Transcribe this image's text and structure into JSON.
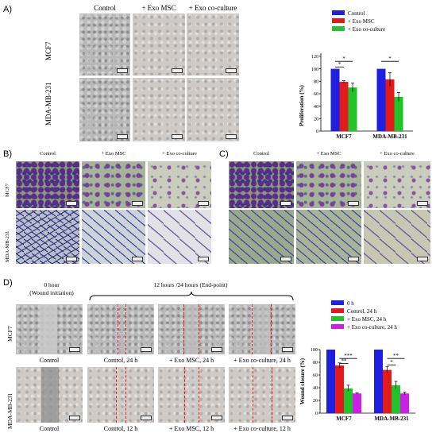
{
  "panels": {
    "a": {
      "label": "A)",
      "headers": [
        "Control",
        "+ Exo MSC",
        "+ Exo co-culture"
      ],
      "rows": [
        "MCF7",
        "MDA-MB-231"
      ]
    },
    "b": {
      "label": "B)",
      "headers": [
        "Control",
        "+ Exo MSC",
        "+ Exo co-culture"
      ],
      "rows": [
        "MCF7",
        "MDA-MB-231"
      ]
    },
    "c": {
      "label": "C)",
      "headers": [
        "Control",
        "+ Exo MSC",
        "+ Exo co-culture"
      ]
    },
    "d": {
      "label": "D)",
      "time0": "0 hour",
      "time0_sub": "(Wound initiation)",
      "timeEnd": "12 hours /24 hours (End-point)",
      "rows": [
        "MCF7",
        "MDA-MB-231"
      ],
      "captions_top": [
        "Control",
        "Control, 24 h",
        "+ Exo MSC, 24 h",
        "+ Exo co-culture, 24 h"
      ],
      "captions_bottom": [
        "Control",
        "Control, 12 h",
        "+ Exo MSC, 12 h",
        "+ Exo co-culture, 12 h"
      ]
    }
  },
  "colors": {
    "blue": "#1f1fe0",
    "red": "#e31a1c",
    "green": "#22c22a",
    "magenta": "#cc1fe6"
  },
  "chart_data": [
    {
      "type": "bar",
      "categories": [
        "MCF7",
        "MDA-MB-231"
      ],
      "series": [
        {
          "name": "Control",
          "values": [
            100,
            100
          ],
          "errors": [
            0,
            0
          ]
        },
        {
          "name": "+ Exo MSC",
          "values": [
            79,
            83
          ],
          "errors": [
            2,
            11
          ]
        },
        {
          "name": "+ Exo co-culture",
          "values": [
            70,
            55
          ],
          "errors": [
            7,
            7
          ]
        }
      ],
      "ylabel": "Proliferation (%)",
      "ylim": [
        0,
        125
      ],
      "yticks": [
        0,
        20,
        40,
        60,
        80,
        100,
        120
      ],
      "significance": [
        "*",
        "*",
        "*"
      ],
      "legend": "top"
    },
    {
      "type": "bar",
      "categories": [
        "MCF7",
        "MDA-MB-231"
      ],
      "series": [
        {
          "name": "0 h",
          "values": [
            100,
            100
          ],
          "errors": [
            0,
            0
          ]
        },
        {
          "name": "Control, 24 h",
          "values": [
            75,
            68
          ],
          "errors": [
            4,
            5
          ]
        },
        {
          "name": "+ Exo MSC, 24 h",
          "values": [
            39,
            44
          ],
          "errors": [
            5,
            6
          ]
        },
        {
          "name": "+ Exo co-culture, 24 h",
          "values": [
            31,
            31
          ],
          "errors": [
            1,
            2
          ]
        }
      ],
      "ylabel": "Wound closure (%)",
      "ylim": [
        0,
        100
      ],
      "yticks": [
        0,
        20,
        40,
        60,
        80,
        100
      ],
      "significance": [
        "***",
        "**",
        "**",
        "*"
      ],
      "legend": "top"
    }
  ]
}
